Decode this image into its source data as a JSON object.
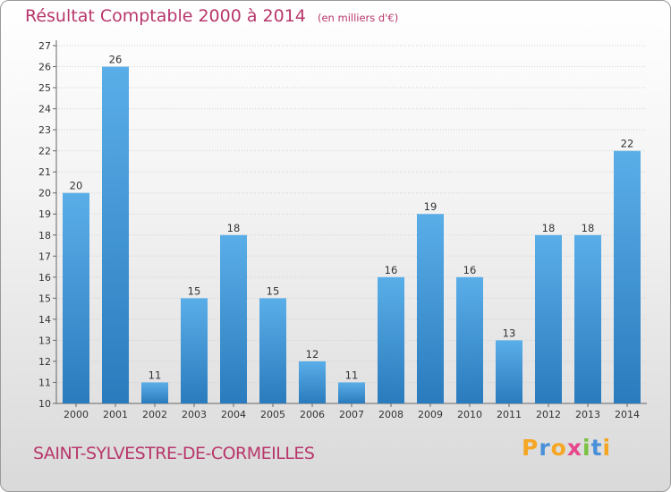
{
  "title": "Résultat Comptable 2000 à 2014",
  "subtitle": "(en milliers d'€)",
  "commune": "SAINT-SYLVESTRE-DE-CORMEILLES",
  "logo": {
    "letters": [
      "P",
      "r",
      "o",
      "x",
      "i",
      "t",
      "i"
    ],
    "colors": [
      "#f5a623",
      "#4a90d9",
      "#f5a623",
      "#e8478b",
      "#7ac142",
      "#4a90d9",
      "#f5a623"
    ]
  },
  "colors": {
    "bar_light": "#5aaee8",
    "bar_dark": "#2a7bbd",
    "title": "#b8366b",
    "grid": "#cfcfcf"
  },
  "chart_data": {
    "type": "bar",
    "categories": [
      "2000",
      "2001",
      "2002",
      "2003",
      "2004",
      "2005",
      "2006",
      "2007",
      "2008",
      "2009",
      "2010",
      "2011",
      "2012",
      "2013",
      "2014"
    ],
    "values": [
      20,
      26,
      11,
      15,
      18,
      15,
      12,
      11,
      16,
      19,
      16,
      13,
      18,
      18,
      22
    ],
    "y_ticks": [
      10,
      11,
      12,
      13,
      14,
      15,
      16,
      17,
      18,
      19,
      20,
      21,
      22,
      23,
      24,
      25,
      26,
      27
    ],
    "ylim": [
      10,
      27
    ],
    "grid": true
  }
}
